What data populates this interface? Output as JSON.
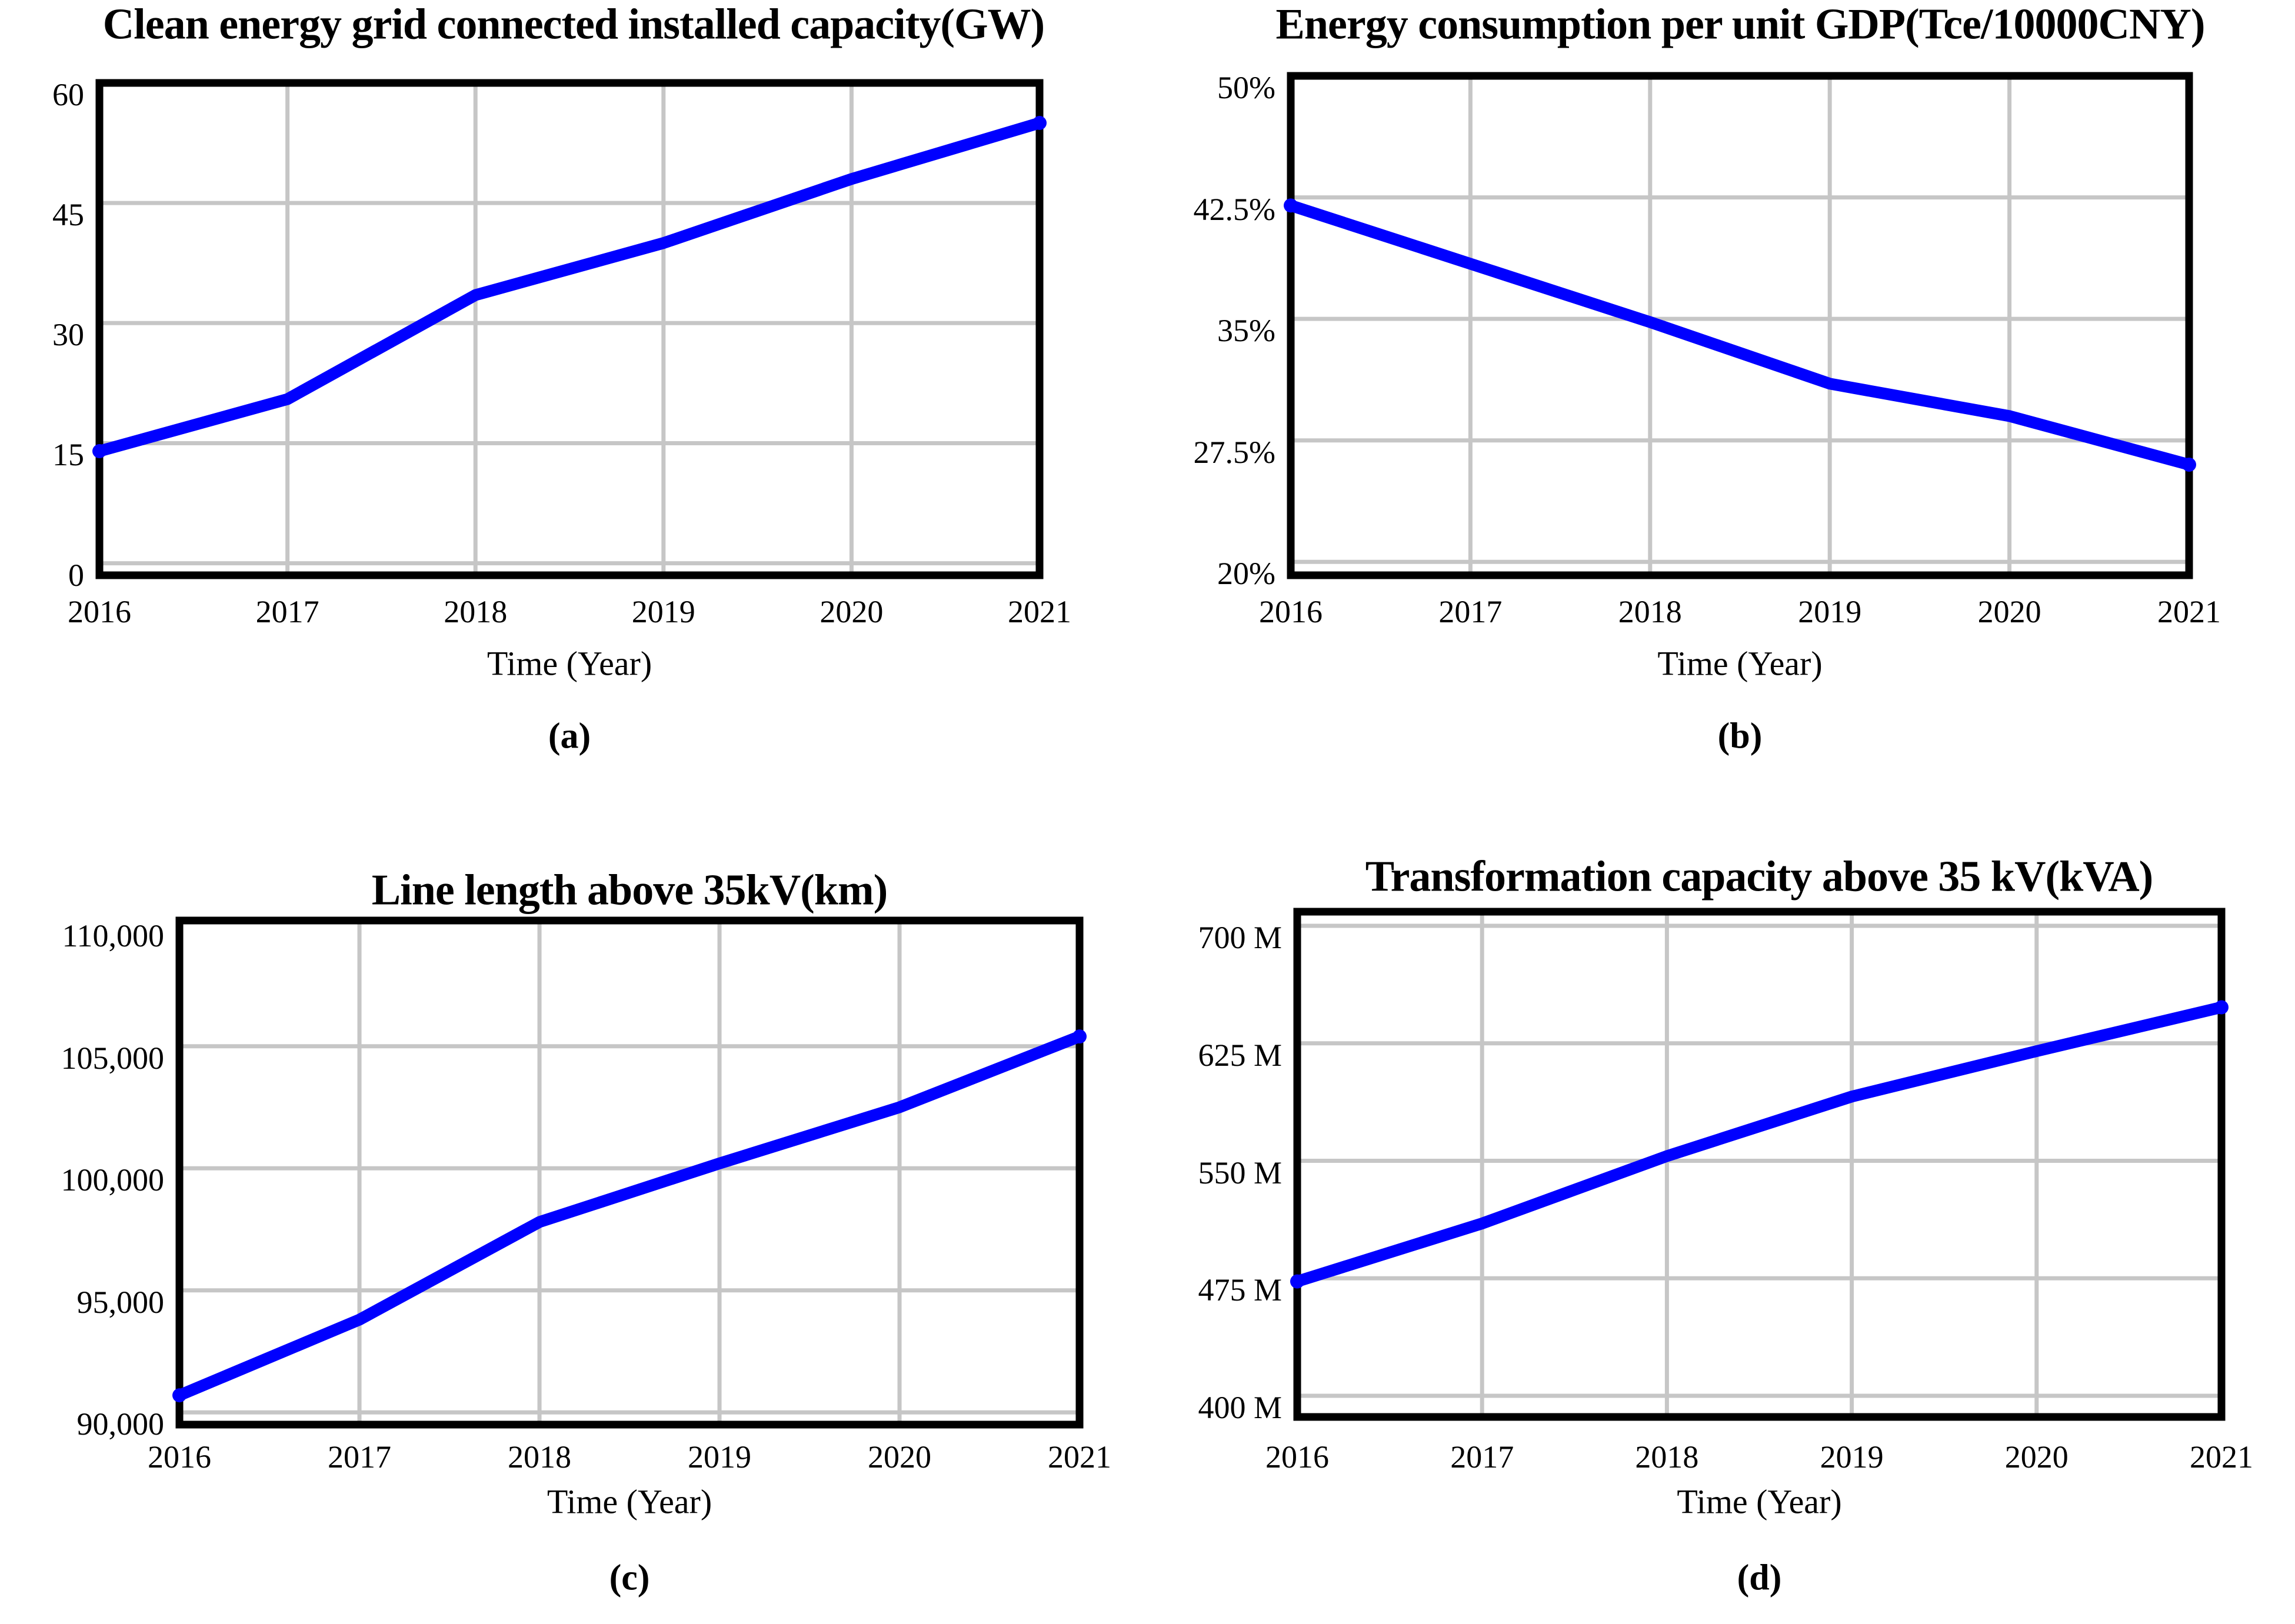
{
  "colors": {
    "line": "#0000FF",
    "grid": "#C6C6C6",
    "border": "#000000",
    "background": "#FFFFFF",
    "text": "#000000"
  },
  "chart_data": [
    {
      "id": "a",
      "type": "line",
      "title": "Clean energy grid connected installed capacity(GW)",
      "xlabel": "Time (Year)",
      "caption": "(a)",
      "x": [
        2016,
        2017,
        2018,
        2019,
        2020,
        2021
      ],
      "x_tick_labels": [
        "2016",
        "2017",
        "2018",
        "2019",
        "2020",
        "2021"
      ],
      "values": [
        14,
        20.5,
        33.5,
        40,
        48,
        55
      ],
      "y_tick_values": [
        60,
        45,
        30,
        15,
        0
      ],
      "y_tick_labels": [
        "60",
        "45",
        "30",
        "15",
        "0"
      ],
      "ylim": [
        0,
        60
      ],
      "grid": true,
      "legend": "none"
    },
    {
      "id": "b",
      "type": "line",
      "title": "Energy consumption per unit GDP(Tce/10000CNY)",
      "xlabel": "Time (Year)",
      "caption": "(b)",
      "x": [
        2016,
        2017,
        2018,
        2019,
        2020,
        2021
      ],
      "x_tick_labels": [
        "2016",
        "2017",
        "2018",
        "2019",
        "2020",
        "2021"
      ],
      "values": [
        42,
        38.4,
        34.8,
        31,
        29,
        26
      ],
      "y_tick_values": [
        50,
        42.5,
        35,
        27.5,
        20
      ],
      "y_tick_labels": [
        "50%",
        "42.5%",
        "35%",
        "27.5%",
        "20%"
      ],
      "ylim": [
        20,
        50
      ],
      "grid": true,
      "legend": "none"
    },
    {
      "id": "c",
      "type": "line",
      "title": "Line length above 35kV(km)",
      "xlabel": "Time (Year)",
      "caption": "(c)",
      "x": [
        2016,
        2017,
        2018,
        2019,
        2020,
        2021
      ],
      "x_tick_labels": [
        "2016",
        "2017",
        "2018",
        "2019",
        "2020",
        "2021"
      ],
      "values": [
        90700,
        93800,
        97800,
        100200,
        102500,
        105400
      ],
      "y_tick_values": [
        110000,
        105000,
        100000,
        95000,
        90000
      ],
      "y_tick_labels": [
        "110,000",
        "105,000",
        "100,000",
        "95,000",
        "90,000"
      ],
      "ylim": [
        90000,
        110000
      ],
      "grid": true,
      "legend": "none"
    },
    {
      "id": "d",
      "type": "line",
      "title": "Transformation capacity above 35 kV(kVA)",
      "xlabel": "Time (Year)",
      "caption": "(d)",
      "x": [
        2016,
        2017,
        2018,
        2019,
        2020,
        2021
      ],
      "x_tick_labels": [
        "2016",
        "2017",
        "2018",
        "2019",
        "2020",
        "2021"
      ],
      "values": [
        473,
        510,
        553,
        591,
        620,
        648
      ],
      "unit": "M",
      "y_tick_values": [
        700,
        625,
        550,
        475,
        400
      ],
      "y_tick_labels": [
        "700 M",
        "625 M",
        "550 M",
        "475 M",
        "400 M"
      ],
      "ylim": [
        400,
        700
      ],
      "grid": true,
      "legend": "none"
    }
  ]
}
